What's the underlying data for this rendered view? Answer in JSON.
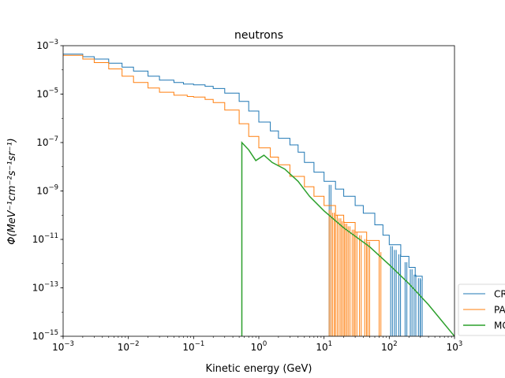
{
  "chart_data": {
    "type": "line",
    "title": "neutrons",
    "xlabel": "Kinetic energy (GeV)",
    "ylabel_text": "Φ(MeV⁻¹cm⁻²s⁻¹sr⁻¹)",
    "xscale": "log",
    "yscale": "log",
    "xlim": [
      0.001,
      1000
    ],
    "ylim": [
      1e-15,
      0.001
    ],
    "x_ticks": [
      {
        "value": 0.001,
        "base": "10",
        "exp": "−3"
      },
      {
        "value": 0.01,
        "base": "10",
        "exp": "−2"
      },
      {
        "value": 0.1,
        "base": "10",
        "exp": "−1"
      },
      {
        "value": 1,
        "base": "10",
        "exp": "0"
      },
      {
        "value": 10,
        "base": "10",
        "exp": "1"
      },
      {
        "value": 100,
        "base": "10",
        "exp": "2"
      },
      {
        "value": 1000,
        "base": "10",
        "exp": "3"
      }
    ],
    "y_ticks": [
      {
        "value": 1e-15,
        "base": "10",
        "exp": "−15"
      },
      {
        "value": 1e-13,
        "base": "10",
        "exp": "−13"
      },
      {
        "value": 1e-11,
        "base": "10",
        "exp": "−11"
      },
      {
        "value": 1e-09,
        "base": "10",
        "exp": "−9"
      },
      {
        "value": 1e-07,
        "base": "10",
        "exp": "−7"
      },
      {
        "value": 1e-05,
        "base": "10",
        "exp": "−5"
      },
      {
        "value": 0.001,
        "base": "10",
        "exp": "−3"
      }
    ],
    "grid": false,
    "legend_position": "lower right, outside axes (clipped)",
    "legend_entries_visible": [
      "CR",
      "PA",
      "MC"
    ],
    "series": [
      {
        "legend_label": "CR",
        "color": "#1f77b4",
        "style": "steps",
        "points": [
          [
            0.001,
            0.00045
          ],
          [
            0.002,
            0.00035
          ],
          [
            0.003,
            0.00028
          ],
          [
            0.005,
            0.00019
          ],
          [
            0.008,
            0.00013
          ],
          [
            0.012,
            9e-05
          ],
          [
            0.02,
            5.5e-05
          ],
          [
            0.03,
            3.8e-05
          ],
          [
            0.05,
            3e-05
          ],
          [
            0.07,
            2.6e-05
          ],
          [
            0.1,
            2.4e-05
          ],
          [
            0.15,
            2.1e-05
          ],
          [
            0.2,
            1.7e-05
          ],
          [
            0.3,
            1.1e-05
          ],
          [
            0.5,
            5e-06
          ],
          [
            0.7,
            2e-06
          ],
          [
            1.0,
            7e-07
          ],
          [
            1.5,
            3e-07
          ],
          [
            2.0,
            1.5e-07
          ],
          [
            3.0,
            8e-08
          ],
          [
            4.0,
            4e-08
          ],
          [
            5.0,
            1.5e-08
          ],
          [
            7.0,
            6e-09
          ],
          [
            10.0,
            2.5e-09
          ],
          [
            15.0,
            1.2e-09
          ],
          [
            20.0,
            6e-10
          ],
          [
            30.0,
            2.5e-10
          ],
          [
            40.0,
            1.2e-10
          ],
          [
            60.0,
            4e-11
          ],
          [
            80.0,
            1.5e-11
          ],
          [
            100.0,
            6e-12
          ],
          [
            150.0,
            2e-12
          ],
          [
            200.0,
            7e-13
          ],
          [
            250.0,
            3e-13
          ],
          [
            320.0,
            2e-13
          ]
        ],
        "dropouts_x": [
          12,
          105,
          120,
          140,
          175,
          210,
          240,
          280,
          300
        ]
      },
      {
        "legend_label": "PA",
        "color": "#ff7f0e",
        "style": "steps",
        "points": [
          [
            0.001,
            0.0004
          ],
          [
            0.002,
            0.00028
          ],
          [
            0.003,
            0.0002
          ],
          [
            0.005,
            0.00011
          ],
          [
            0.008,
            5.5e-05
          ],
          [
            0.012,
            3e-05
          ],
          [
            0.02,
            1.8e-05
          ],
          [
            0.03,
            1.2e-05
          ],
          [
            0.05,
            9e-06
          ],
          [
            0.08,
            8e-06
          ],
          [
            0.1,
            7.5e-06
          ],
          [
            0.15,
            6e-06
          ],
          [
            0.2,
            4.5e-06
          ],
          [
            0.3,
            2.2e-06
          ],
          [
            0.5,
            6e-07
          ],
          [
            0.7,
            1.8e-07
          ],
          [
            1.0,
            6e-08
          ],
          [
            1.5,
            2.5e-08
          ],
          [
            2.0,
            1.2e-08
          ],
          [
            3.0,
            4e-09
          ],
          [
            5.0,
            1.5e-09
          ],
          [
            7.0,
            6e-10
          ],
          [
            10.0,
            2.5e-10
          ],
          [
            15.0,
            1e-10
          ],
          [
            20.0,
            5e-11
          ],
          [
            30.0,
            2e-11
          ],
          [
            45.0,
            9e-12
          ],
          [
            70.0,
            3e-12
          ]
        ],
        "dropouts_x": [
          12,
          13.5,
          15,
          17,
          19,
          21,
          23.5,
          27,
          30,
          35,
          42,
          47,
          70
        ]
      },
      {
        "legend_label": "MC",
        "color": "#2ca02c",
        "style": "line",
        "vertical_start_x": 0.55,
        "points": [
          [
            0.55,
            1e-07
          ],
          [
            0.7,
            5e-08
          ],
          [
            0.9,
            1.8e-08
          ],
          [
            1.2,
            3e-08
          ],
          [
            1.6,
            1.5e-08
          ],
          [
            2.5,
            8e-09
          ],
          [
            4.0,
            2.5e-09
          ],
          [
            6.0,
            6e-10
          ],
          [
            10.0,
            1.5e-10
          ],
          [
            20.0,
            3e-11
          ],
          [
            50.0,
            5e-12
          ],
          [
            100.0,
            9e-13
          ],
          [
            200.0,
            1.5e-13
          ],
          [
            400.0,
            2e-14
          ],
          [
            1000.0,
            1e-15
          ]
        ]
      }
    ]
  }
}
